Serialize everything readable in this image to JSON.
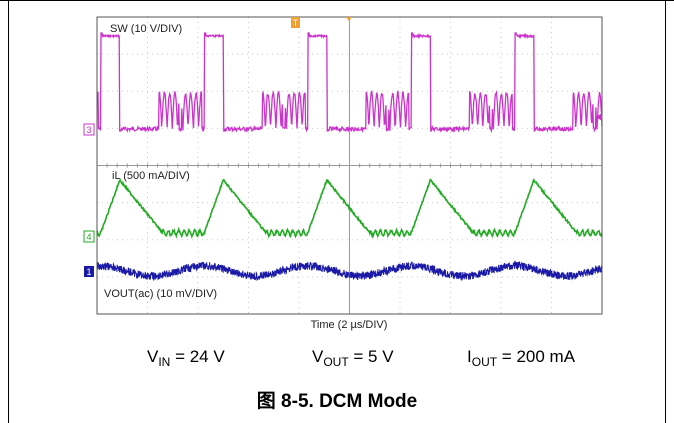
{
  "scope": {
    "background": "#ffffff",
    "grid_color": "#c8c8c8",
    "xlabel": "Time (2 µs/DIV)",
    "markers": {
      "trigger": "T",
      "ch3": "3",
      "ch4": "4",
      "ch1": "1"
    }
  },
  "chart_data": {
    "type": "line",
    "title": "",
    "xlabel": "Time (2 µs/DIV)",
    "x_divisions": 10,
    "x_unit": "µs",
    "x_per_div": 2,
    "x_range": [
      0,
      20
    ],
    "series": [
      {
        "name": "SW (10 V/DIV)",
        "color": "#cc33cc",
        "per_div": "10 V/DIV",
        "description_values": {
          "period_us": 4.1,
          "high_pulse_width_us": 0.75,
          "high_level_V": 24,
          "low_level_V": 0,
          "ringing_bursts_per_period": 2
        }
      },
      {
        "name": "iL (500 mA/DIV)",
        "color": "#22aa22",
        "per_div": "500 mA/DIV",
        "description_values": {
          "period_us": 4.1,
          "peak_mA": 850,
          "valley_mA": 0
        }
      },
      {
        "name": "VOUT(ac) (10 mV/DIV)",
        "color": "#1a1aa6",
        "per_div": "10 mV/DIV",
        "description_values": {
          "period_us": 4.1,
          "ripple_pk_pk_mV": 8
        }
      }
    ]
  },
  "conditions": {
    "vin_main": "V",
    "vin_sub": "IN",
    "vin_value": " = 24 V",
    "vout_main": "V",
    "vout_sub": "OUT",
    "vout_value": " = 5 V",
    "iout_main": "I",
    "iout_sub": "OUT",
    "iout_value": " = 200 mA"
  },
  "caption": "图 8-5. DCM Mode"
}
